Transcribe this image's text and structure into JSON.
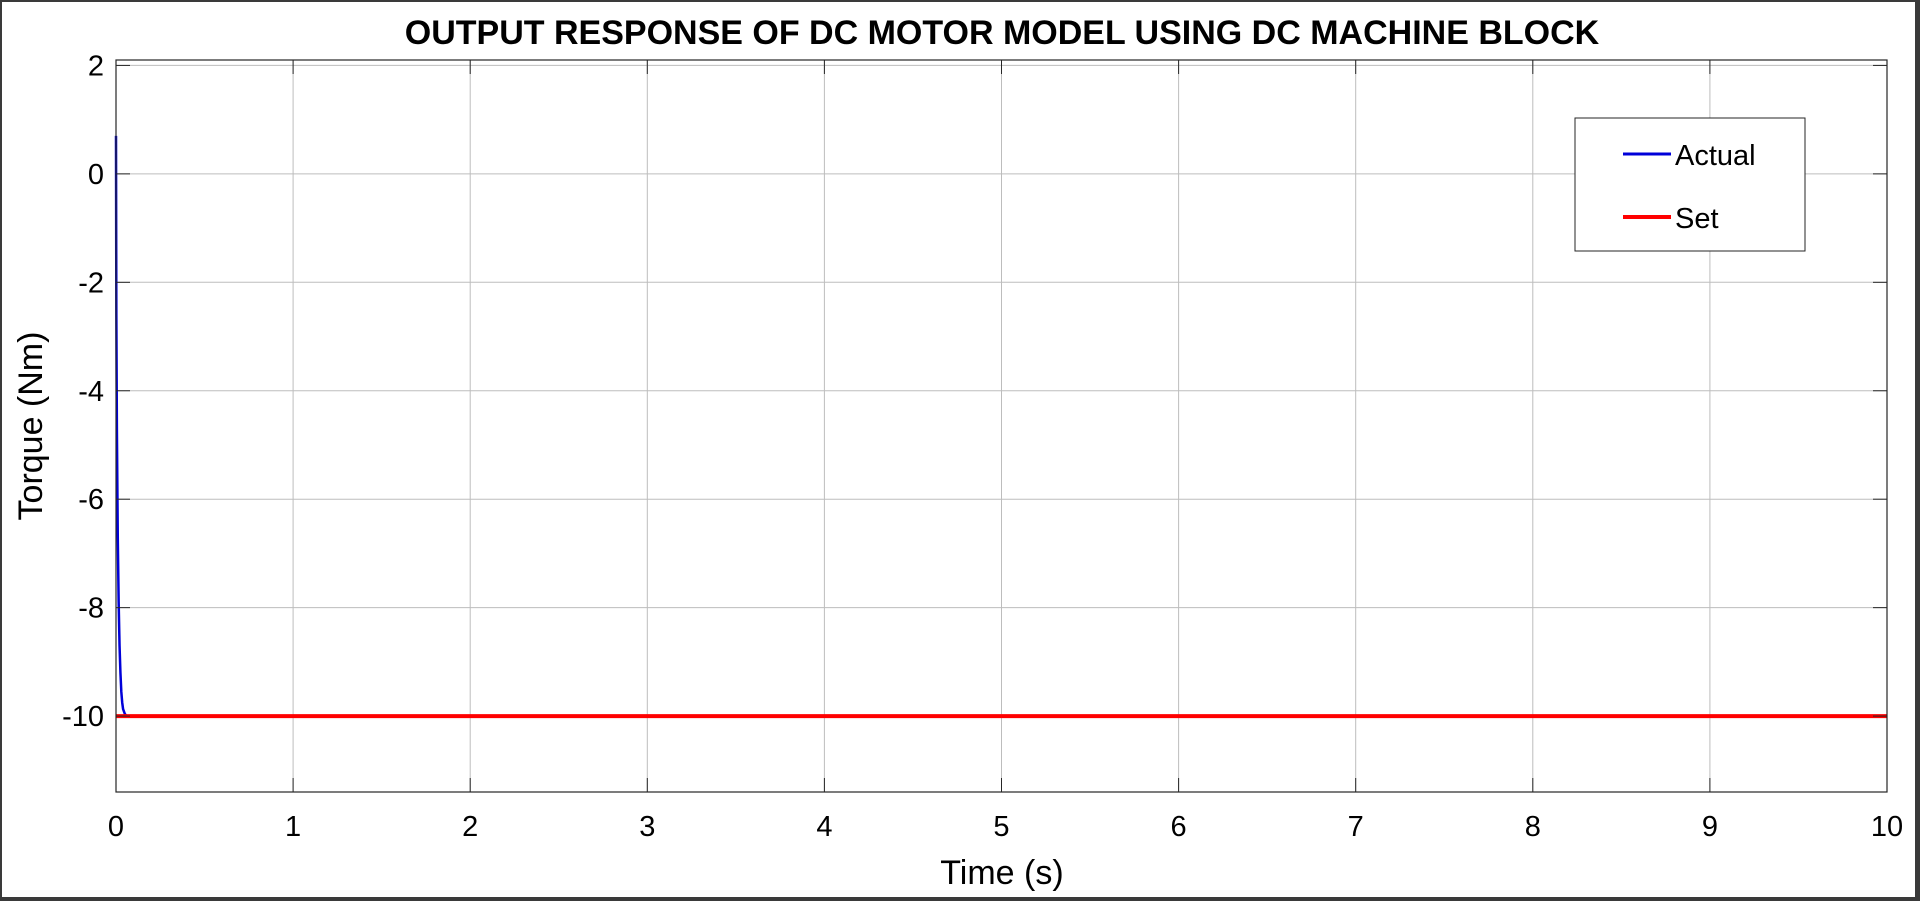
{
  "colors": {
    "actual": "#0000d9",
    "set": "#ff0000",
    "grid": "#bdbdbd",
    "axes": "#262626",
    "background": "#ffffff"
  },
  "chart_data": {
    "type": "line",
    "title": "OUTPUT RESPONSE OF DC MOTOR MODEL USING DC MACHINE BLOCK",
    "xlabel": "Time (s)",
    "ylabel": "Torque (Nm)",
    "xlim": [
      0,
      10
    ],
    "ylim": [
      -11.4,
      2.1
    ],
    "xticks": [
      0,
      1,
      2,
      3,
      4,
      5,
      6,
      7,
      8,
      9,
      10
    ],
    "xtick_labels": [
      "0",
      "1",
      "2",
      "3",
      "4",
      "5",
      "6",
      "7",
      "8",
      "9",
      "10"
    ],
    "yticks": [
      2,
      0,
      -2,
      -4,
      -6,
      -8,
      -10
    ],
    "ytick_labels": [
      "2",
      "0",
      "-2",
      "-4",
      "-6",
      "-8",
      "-10"
    ],
    "grid": true,
    "legend_position": "top-right",
    "series": [
      {
        "name": "Actual",
        "color": "#0000d9",
        "x": [
          0,
          0.002,
          0.005,
          0.01,
          0.015,
          0.02,
          0.025,
          0.03,
          0.035,
          0.04,
          0.05,
          0.06,
          0.08,
          10
        ],
        "y": [
          0.7,
          -2.6,
          -4.7,
          -6.7,
          -7.9,
          -8.7,
          -9.2,
          -9.55,
          -9.75,
          -9.87,
          -9.96,
          -10,
          -10,
          -10
        ]
      },
      {
        "name": "Set",
        "color": "#ff0000",
        "x": [
          0,
          10
        ],
        "y": [
          -10,
          -10
        ]
      }
    ]
  }
}
